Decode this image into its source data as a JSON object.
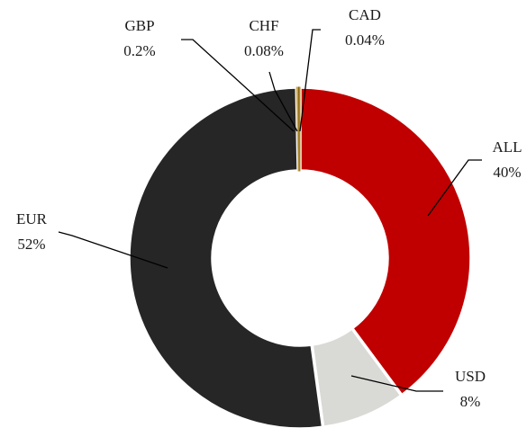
{
  "chart_data": {
    "type": "donut",
    "categories": [
      "ALL",
      "USD",
      "EUR",
      "GBP",
      "CHF",
      "CAD"
    ],
    "values": [
      40,
      8,
      52,
      0.2,
      0.08,
      0.04
    ],
    "value_labels": [
      "40%",
      "8%",
      "52%",
      "0.2%",
      "0.08%",
      "0.04%"
    ],
    "colors": [
      "#c00000",
      "#d9d9d6",
      "#262626",
      "#c8a45c",
      "#7f6000",
      "#b8862b"
    ]
  }
}
